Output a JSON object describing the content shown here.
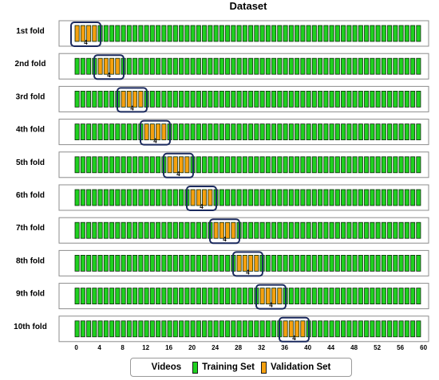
{
  "diagram": {
    "title": "Dataset",
    "total_videos": 60,
    "validation_size": 4,
    "validation_badge": "4",
    "colors": {
      "training": "#1fd11f",
      "validation": "#f5a00f",
      "highlight_border": "#1b2a5e",
      "row_border": "#8c8c8c"
    },
    "folds": [
      {
        "label": "1st fold",
        "validation_start": 0
      },
      {
        "label": "2nd fold",
        "validation_start": 4
      },
      {
        "label": "3rd fold",
        "validation_start": 8
      },
      {
        "label": "4th fold",
        "validation_start": 12
      },
      {
        "label": "5th fold",
        "validation_start": 16
      },
      {
        "label": "6th fold",
        "validation_start": 20
      },
      {
        "label": "7th fold",
        "validation_start": 24
      },
      {
        "label": "8th fold",
        "validation_start": 28
      },
      {
        "label": "9th fold",
        "validation_start": 32
      },
      {
        "label": "10th fold",
        "validation_start": 36
      }
    ],
    "axis_ticks": [
      "0",
      "4",
      "8",
      "12",
      "16",
      "20",
      "24",
      "28",
      "32",
      "36",
      "40",
      "44",
      "48",
      "52",
      "56",
      "60"
    ]
  },
  "legend": {
    "title": "Videos",
    "training_label": "Training Set",
    "validation_label": "Validation Set"
  }
}
